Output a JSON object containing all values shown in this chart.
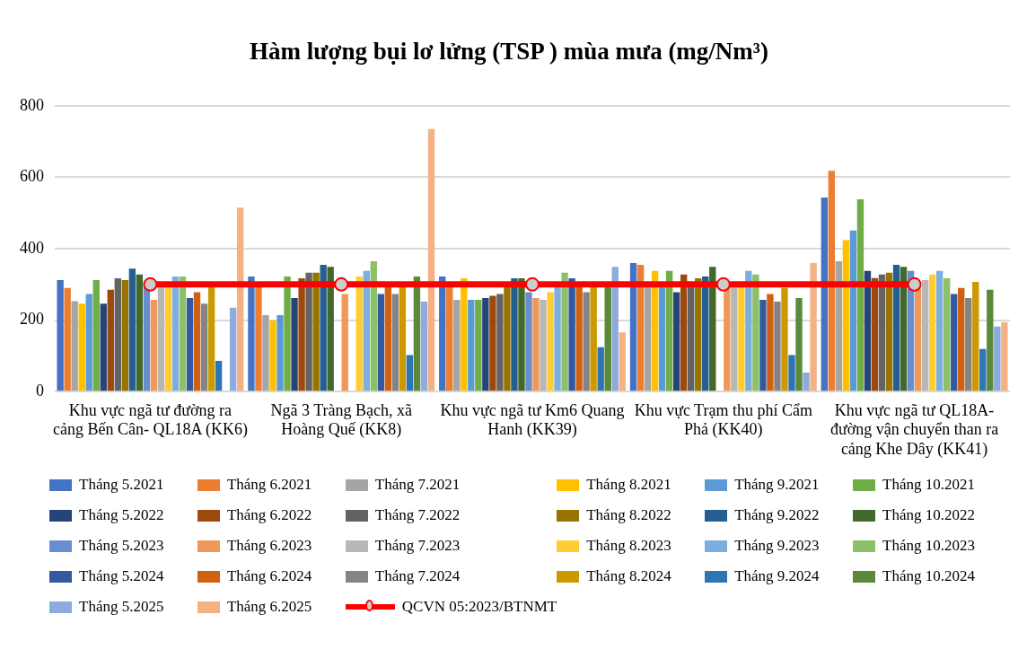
{
  "chart_data": {
    "type": "bar",
    "title": "Hàm lượng bụi lơ lửng  (TSP ) mùa mưa (mg/Nm³)",
    "categories": [
      "Khu vực ngã tư đường ra cảng Bến Cân- QL18A (KK6)",
      "Ngã 3 Tràng Bạch, xã Hoàng Quế (KK8)",
      "Khu vực ngã tư Km6 Quang Hanh (KK39)",
      "Khu vực Trạm thu phí Cẩm Phả (KK40)",
      "Khu vực ngã tư QL18A- đường vận chuyển than ra cảng Khe Dây (KK41)"
    ],
    "ylim": [
      0,
      800
    ],
    "yticks": [
      0,
      200,
      400,
      600,
      800
    ],
    "grid": "y",
    "legend": "bottom",
    "series": [
      {
        "name": "Tháng 5.2021",
        "color": "#4472c4",
        "values": [
          312,
          322,
          322,
          360,
          543
        ]
      },
      {
        "name": "Tháng 6.2021",
        "color": "#ed7d31",
        "values": [
          290,
          298,
          298,
          355,
          618
        ]
      },
      {
        "name": "Tháng 7.2021",
        "color": "#a5a5a5",
        "values": [
          253,
          214,
          257,
          298,
          365
        ]
      },
      {
        "name": "Tháng 8.2021",
        "color": "#ffc000",
        "values": [
          246,
          199,
          317,
          338,
          424
        ]
      },
      {
        "name": "Tháng 9.2021",
        "color": "#5b9bd5",
        "values": [
          273,
          214,
          257,
          298,
          451
        ]
      },
      {
        "name": "Tháng 10.2021",
        "color": "#70ad47",
        "values": [
          312,
          322,
          257,
          338,
          538
        ]
      },
      {
        "name": "Tháng 5.2022",
        "color": "#264478",
        "values": [
          246,
          262,
          262,
          278,
          338
        ]
      },
      {
        "name": "Tháng 6.2022",
        "color": "#9e480e",
        "values": [
          285,
          317,
          268,
          328,
          318
        ]
      },
      {
        "name": "Tháng 7.2022",
        "color": "#636363",
        "values": [
          317,
          333,
          273,
          298,
          328
        ]
      },
      {
        "name": "Tháng 8.2022",
        "color": "#997300",
        "values": [
          312,
          333,
          298,
          317,
          333
        ]
      },
      {
        "name": "Tháng 9.2022",
        "color": "#255e91",
        "values": [
          344,
          355,
          317,
          322,
          355
        ]
      },
      {
        "name": "Tháng 10.2022",
        "color": "#43682b",
        "values": [
          328,
          349,
          317,
          349,
          349
        ]
      },
      {
        "name": "Tháng 5.2023",
        "color": "#698ed0",
        "values": [
          296,
          null,
          278,
          null,
          338
        ]
      },
      {
        "name": "Tháng 6.2023",
        "color": "#f1975a",
        "values": [
          257,
          273,
          262,
          298,
          290
        ]
      },
      {
        "name": "Tháng 7.2023",
        "color": "#b7b7b7",
        "values": [
          295,
          null,
          257,
          298,
          312
        ]
      },
      {
        "name": "Tháng 8.2023",
        "color": "#ffcd33",
        "values": [
          295,
          322,
          278,
          298,
          328
        ]
      },
      {
        "name": "Tháng 9.2023",
        "color": "#7cafdd",
        "values": [
          322,
          338,
          292,
          338,
          338
        ]
      },
      {
        "name": "Tháng 10.2023",
        "color": "#8cc168",
        "values": [
          322,
          365,
          333,
          328,
          317
        ]
      },
      {
        "name": "Tháng 5.2024",
        "color": "#335aa1",
        "values": [
          262,
          273,
          317,
          257,
          273
        ]
      },
      {
        "name": "Tháng 6.2024",
        "color": "#d26012",
        "values": [
          278,
          298,
          298,
          273,
          290
        ]
      },
      {
        "name": "Tháng 7.2024",
        "color": "#848484",
        "values": [
          246,
          273,
          278,
          252,
          262
        ]
      },
      {
        "name": "Tháng 8.2024",
        "color": "#cc9a00",
        "values": [
          298,
          298,
          298,
          290,
          307
        ]
      },
      {
        "name": "Tháng 9.2024",
        "color": "#2e75b6",
        "values": [
          86,
          102,
          124,
          102,
          119
        ]
      },
      {
        "name": "Tháng 10.2024",
        "color": "#5a8a39",
        "values": [
          null,
          322,
          298,
          262,
          285
        ]
      },
      {
        "name": "Tháng 5.2025",
        "color": "#8faadc",
        "values": [
          235,
          252,
          349,
          53,
          182
        ]
      },
      {
        "name": "Tháng 6.2025",
        "color": "#f4b183",
        "values": [
          515,
          735,
          166,
          360,
          194
        ]
      },
      {
        "name": "QCVN 05:2023/BTNMT",
        "type": "line",
        "color": "#ff0000",
        "marker": "circle",
        "values": [
          300,
          300,
          300,
          300,
          300
        ]
      }
    ]
  }
}
